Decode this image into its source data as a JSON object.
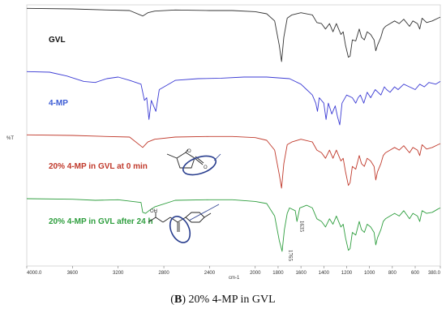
{
  "chart_data": {
    "type": "line",
    "xlabel": "cm-1",
    "ylabel": "%T",
    "xlim": [
      4000.0,
      380.0
    ],
    "x_reversed": true,
    "x_ticks": [
      "4000.0",
      "3600",
      "3200",
      "2800",
      "2400",
      "2000",
      "1800",
      "1600",
      "1400",
      "1200",
      "1000",
      "800",
      "600",
      "380.0"
    ],
    "x_tick_values": [
      4000,
      3600,
      3200,
      2800,
      2400,
      2000,
      1800,
      1600,
      1400,
      1200,
      1000,
      800,
      600,
      380
    ],
    "series": [
      {
        "name": "GVL",
        "color": "#333333",
        "baseline": 0.0,
        "points": [
          [
            4000,
            0.02
          ],
          [
            3600,
            0.03
          ],
          [
            3300,
            0.05
          ],
          [
            3100,
            0.06
          ],
          [
            2985,
            0.16
          ],
          [
            2940,
            0.1
          ],
          [
            2880,
            0.07
          ],
          [
            2700,
            0.05
          ],
          [
            2400,
            0.06
          ],
          [
            2200,
            0.06
          ],
          [
            2000,
            0.08
          ],
          [
            1900,
            0.12
          ],
          [
            1830,
            0.25
          ],
          [
            1790,
            0.7
          ],
          [
            1770,
            1.0
          ],
          [
            1750,
            0.55
          ],
          [
            1720,
            0.2
          ],
          [
            1680,
            0.14
          ],
          [
            1600,
            0.1
          ],
          [
            1500,
            0.14
          ],
          [
            1460,
            0.28
          ],
          [
            1420,
            0.3
          ],
          [
            1385,
            0.4
          ],
          [
            1350,
            0.3
          ],
          [
            1320,
            0.45
          ],
          [
            1290,
            0.3
          ],
          [
            1250,
            0.5
          ],
          [
            1230,
            0.45
          ],
          [
            1210,
            0.7
          ],
          [
            1185,
            0.92
          ],
          [
            1170,
            0.9
          ],
          [
            1150,
            0.6
          ],
          [
            1120,
            0.62
          ],
          [
            1090,
            0.4
          ],
          [
            1070,
            0.55
          ],
          [
            1045,
            0.6
          ],
          [
            1020,
            0.45
          ],
          [
            990,
            0.5
          ],
          [
            960,
            0.6
          ],
          [
            945,
            0.8
          ],
          [
            930,
            0.7
          ],
          [
            900,
            0.55
          ],
          [
            880,
            0.4
          ],
          [
            860,
            0.35
          ],
          [
            820,
            0.3
          ],
          [
            780,
            0.25
          ],
          [
            740,
            0.3
          ],
          [
            700,
            0.22
          ],
          [
            650,
            0.35
          ],
          [
            620,
            0.25
          ],
          [
            580,
            0.3
          ],
          [
            560,
            0.4
          ],
          [
            540,
            0.2
          ],
          [
            500,
            0.28
          ],
          [
            450,
            0.25
          ],
          [
            400,
            0.2
          ],
          [
            380,
            0.18
          ]
        ]
      },
      {
        "name": "4-MP",
        "color": "#3b3bd4",
        "baseline": 0.0,
        "points": [
          [
            4000,
            0.02
          ],
          [
            3800,
            0.03
          ],
          [
            3650,
            0.1
          ],
          [
            3500,
            0.2
          ],
          [
            3400,
            0.22
          ],
          [
            3300,
            0.15
          ],
          [
            3200,
            0.12
          ],
          [
            3100,
            0.18
          ],
          [
            3000,
            0.25
          ],
          [
            2970,
            0.55
          ],
          [
            2950,
            0.5
          ],
          [
            2930,
            0.9
          ],
          [
            2910,
            0.55
          ],
          [
            2870,
            0.75
          ],
          [
            2840,
            0.35
          ],
          [
            2700,
            0.18
          ],
          [
            2500,
            0.15
          ],
          [
            2300,
            0.14
          ],
          [
            2100,
            0.12
          ],
          [
            1900,
            0.12
          ],
          [
            1700,
            0.15
          ],
          [
            1600,
            0.25
          ],
          [
            1550,
            0.35
          ],
          [
            1500,
            0.45
          ],
          [
            1470,
            0.6
          ],
          [
            1455,
            0.75
          ],
          [
            1440,
            0.5
          ],
          [
            1400,
            0.6
          ],
          [
            1380,
            0.9
          ],
          [
            1360,
            0.6
          ],
          [
            1330,
            0.8
          ],
          [
            1300,
            0.65
          ],
          [
            1280,
            0.85
          ],
          [
            1260,
            1.0
          ],
          [
            1240,
            0.6
          ],
          [
            1200,
            0.45
          ],
          [
            1150,
            0.5
          ],
          [
            1120,
            0.6
          ],
          [
            1100,
            0.5
          ],
          [
            1080,
            0.45
          ],
          [
            1050,
            0.6
          ],
          [
            1020,
            0.4
          ],
          [
            990,
            0.5
          ],
          [
            950,
            0.35
          ],
          [
            900,
            0.45
          ],
          [
            870,
            0.3
          ],
          [
            850,
            0.35
          ],
          [
            820,
            0.4
          ],
          [
            780,
            0.3
          ],
          [
            750,
            0.35
          ],
          [
            700,
            0.25
          ],
          [
            650,
            0.3
          ],
          [
            600,
            0.35
          ],
          [
            560,
            0.25
          ],
          [
            520,
            0.3
          ],
          [
            480,
            0.22
          ],
          [
            420,
            0.25
          ],
          [
            380,
            0.2
          ]
        ]
      },
      {
        "name": "20% 4-MP in GVL at 0 min",
        "color": "#c0392b",
        "baseline": 0.0,
        "points": [
          [
            4000,
            0.02
          ],
          [
            3600,
            0.03
          ],
          [
            3300,
            0.05
          ],
          [
            3100,
            0.06
          ],
          [
            2985,
            0.25
          ],
          [
            2940,
            0.15
          ],
          [
            2880,
            0.1
          ],
          [
            2700,
            0.06
          ],
          [
            2400,
            0.05
          ],
          [
            2200,
            0.05
          ],
          [
            2000,
            0.07
          ],
          [
            1900,
            0.12
          ],
          [
            1830,
            0.3
          ],
          [
            1790,
            0.75
          ],
          [
            1770,
            1.0
          ],
          [
            1750,
            0.55
          ],
          [
            1720,
            0.2
          ],
          [
            1680,
            0.15
          ],
          [
            1600,
            0.1
          ],
          [
            1500,
            0.15
          ],
          [
            1460,
            0.3
          ],
          [
            1420,
            0.35
          ],
          [
            1385,
            0.45
          ],
          [
            1350,
            0.3
          ],
          [
            1320,
            0.45
          ],
          [
            1290,
            0.3
          ],
          [
            1250,
            0.5
          ],
          [
            1230,
            0.45
          ],
          [
            1210,
            0.7
          ],
          [
            1185,
            0.95
          ],
          [
            1170,
            0.9
          ],
          [
            1150,
            0.6
          ],
          [
            1120,
            0.65
          ],
          [
            1090,
            0.4
          ],
          [
            1070,
            0.55
          ],
          [
            1045,
            0.6
          ],
          [
            1020,
            0.45
          ],
          [
            990,
            0.5
          ],
          [
            960,
            0.6
          ],
          [
            945,
            0.85
          ],
          [
            930,
            0.7
          ],
          [
            900,
            0.55
          ],
          [
            880,
            0.4
          ],
          [
            860,
            0.35
          ],
          [
            820,
            0.3
          ],
          [
            780,
            0.25
          ],
          [
            740,
            0.3
          ],
          [
            700,
            0.22
          ],
          [
            650,
            0.35
          ],
          [
            620,
            0.25
          ],
          [
            580,
            0.3
          ],
          [
            560,
            0.4
          ],
          [
            540,
            0.2
          ],
          [
            500,
            0.28
          ],
          [
            450,
            0.25
          ],
          [
            400,
            0.2
          ],
          [
            380,
            0.18
          ]
        ]
      },
      {
        "name": "20% 4-MP in GVL after 24 h",
        "color": "#2e9e3e",
        "baseline": 0.0,
        "points": [
          [
            4000,
            0.03
          ],
          [
            3600,
            0.04
          ],
          [
            3400,
            0.06
          ],
          [
            3200,
            0.05
          ],
          [
            3000,
            0.1
          ],
          [
            2985,
            0.28
          ],
          [
            2960,
            0.3
          ],
          [
            2930,
            0.25
          ],
          [
            2880,
            0.18
          ],
          [
            2700,
            0.06
          ],
          [
            2400,
            0.05
          ],
          [
            2200,
            0.05
          ],
          [
            2000,
            0.08
          ],
          [
            1900,
            0.12
          ],
          [
            1830,
            0.35
          ],
          [
            1790,
            0.8
          ],
          [
            1765,
            1.0
          ],
          [
            1745,
            0.6
          ],
          [
            1720,
            0.3
          ],
          [
            1700,
            0.2
          ],
          [
            1650,
            0.25
          ],
          [
            1635,
            0.45
          ],
          [
            1610,
            0.2
          ],
          [
            1550,
            0.15
          ],
          [
            1500,
            0.2
          ],
          [
            1460,
            0.4
          ],
          [
            1420,
            0.45
          ],
          [
            1385,
            0.55
          ],
          [
            1350,
            0.4
          ],
          [
            1320,
            0.5
          ],
          [
            1290,
            0.35
          ],
          [
            1250,
            0.55
          ],
          [
            1230,
            0.5
          ],
          [
            1210,
            0.75
          ],
          [
            1185,
            0.98
          ],
          [
            1170,
            0.95
          ],
          [
            1150,
            0.65
          ],
          [
            1120,
            0.7
          ],
          [
            1090,
            0.45
          ],
          [
            1070,
            0.6
          ],
          [
            1045,
            0.65
          ],
          [
            1020,
            0.5
          ],
          [
            990,
            0.55
          ],
          [
            960,
            0.65
          ],
          [
            945,
            0.88
          ],
          [
            930,
            0.75
          ],
          [
            900,
            0.6
          ],
          [
            880,
            0.45
          ],
          [
            860,
            0.4
          ],
          [
            820,
            0.35
          ],
          [
            780,
            0.3
          ],
          [
            740,
            0.35
          ],
          [
            700,
            0.25
          ],
          [
            650,
            0.4
          ],
          [
            620,
            0.3
          ],
          [
            580,
            0.35
          ],
          [
            560,
            0.45
          ],
          [
            540,
            0.25
          ],
          [
            500,
            0.3
          ],
          [
            450,
            0.28
          ],
          [
            400,
            0.22
          ],
          [
            380,
            0.2
          ]
        ]
      }
    ],
    "annotations": [
      {
        "text": "1765",
        "x": 1765
      },
      {
        "text": "1635",
        "x": 1635
      }
    ],
    "structure_text": "OH",
    "legend": "none",
    "grid": false
  },
  "caption": {
    "panel": "B",
    "text": " 20% 4-MP in GVL",
    "open_paren": "(",
    "close_paren": ")"
  }
}
